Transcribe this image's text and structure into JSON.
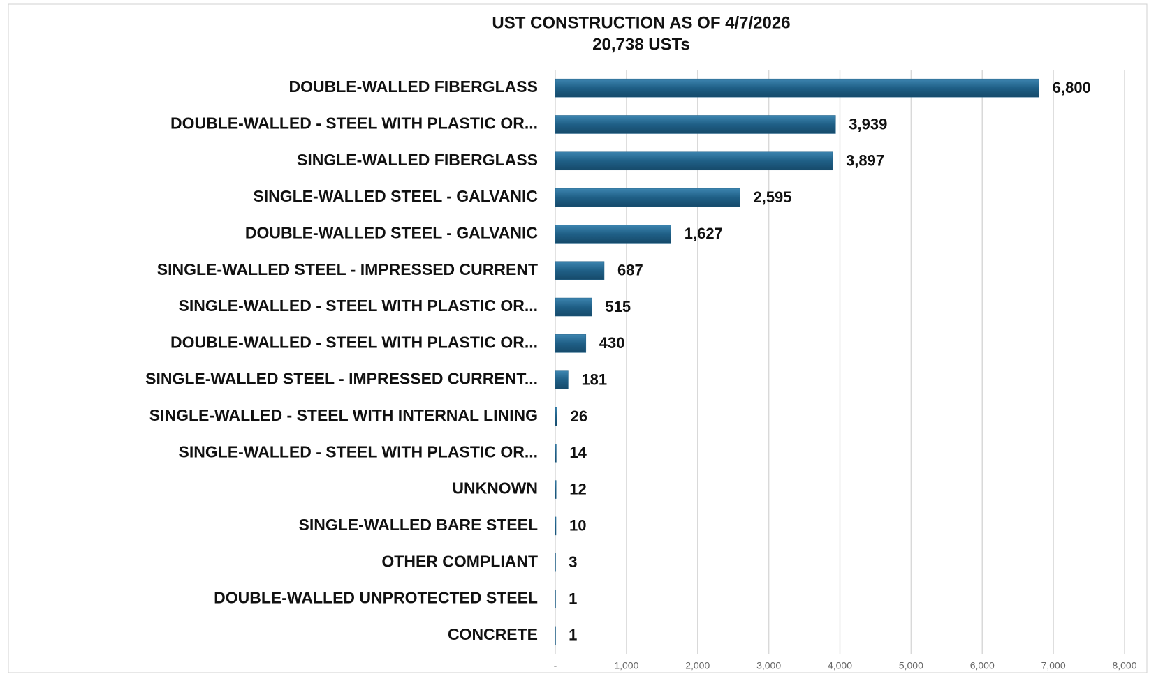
{
  "chart_data": {
    "type": "hbar",
    "title": "UST CONSTRUCTION AS OF 4/7/2026",
    "subtitle": "20,738 USTs",
    "categories": [
      "DOUBLE-WALLED FIBERGLASS",
      "DOUBLE-WALLED - STEEL WITH PLASTIC OR...",
      "SINGLE-WALLED FIBERGLASS",
      "SINGLE-WALLED STEEL - GALVANIC",
      "DOUBLE-WALLED STEEL - GALVANIC",
      "SINGLE-WALLED STEEL - IMPRESSED CURRENT",
      "SINGLE-WALLED - STEEL WITH PLASTIC OR...",
      "DOUBLE-WALLED - STEEL WITH PLASTIC OR...",
      "SINGLE-WALLED STEEL - IMPRESSED CURRENT...",
      "SINGLE-WALLED - STEEL WITH INTERNAL LINING",
      "SINGLE-WALLED - STEEL WITH PLASTIC OR...",
      "UNKNOWN",
      "SINGLE-WALLED BARE STEEL",
      "OTHER COMPLIANT",
      "DOUBLE-WALLED UNPROTECTED STEEL",
      "CONCRETE"
    ],
    "values": [
      6800,
      3939,
      3897,
      2595,
      1627,
      687,
      515,
      430,
      181,
      26,
      14,
      12,
      10,
      3,
      1,
      1
    ],
    "value_labels": [
      "6,800",
      "3,939",
      "3,897",
      "2,595",
      "1,627",
      "687",
      "515",
      "430",
      "181",
      "26",
      "14",
      "12",
      "10",
      "3",
      "1",
      "1"
    ],
    "color": "#1f5f86",
    "xlim": [
      0,
      8000
    ],
    "xticks": [
      {
        "value": 0,
        "label": "-"
      },
      {
        "value": 1000,
        "label": "1,000"
      },
      {
        "value": 2000,
        "label": "2,000"
      },
      {
        "value": 3000,
        "label": "3,000"
      },
      {
        "value": 4000,
        "label": "4,000"
      },
      {
        "value": 5000,
        "label": "5,000"
      },
      {
        "value": 6000,
        "label": "6,000"
      },
      {
        "value": 7000,
        "label": "7,000"
      },
      {
        "value": 8000,
        "label": "8,000"
      }
    ],
    "grid": true
  }
}
